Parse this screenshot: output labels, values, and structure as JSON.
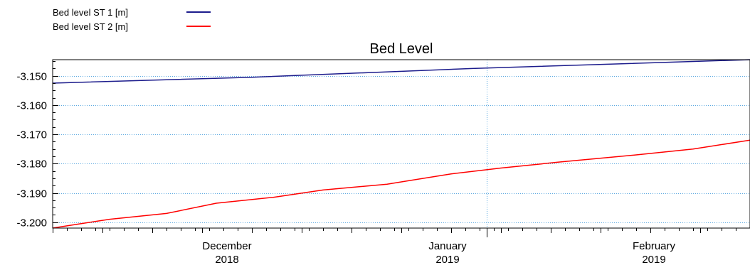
{
  "chart_data": {
    "type": "line",
    "title": "Bed Level",
    "xlabel": "",
    "ylabel": "",
    "legend_position": "top-left",
    "grid": true,
    "x_range": [
      "2018-11-22",
      "2019-02-28"
    ],
    "ylim": [
      -3.202,
      -3.1445
    ],
    "y_ticks": [
      -3.15,
      -3.16,
      -3.17,
      -3.18,
      -3.19,
      -3.2
    ],
    "y_tick_labels": [
      "-3.150",
      "-3.160",
      "-3.170",
      "-3.180",
      "-3.190",
      "-3.200"
    ],
    "x_ticks": [
      {
        "date": "2018-12-01",
        "month": "December",
        "year": "2018"
      },
      {
        "date": "2019-01-01",
        "month": "January",
        "year": "2019"
      },
      {
        "date": "2019-02-01",
        "month": "February",
        "year": "2019"
      }
    ],
    "x_grid_dates": [
      "2019-01-22"
    ],
    "series": [
      {
        "name": "Bed level ST 1 [m]",
        "color": "#1c1c8c",
        "x": [
          "2018-11-22",
          "2018-12-20",
          "2019-01-20",
          "2019-02-28"
        ],
        "y": [
          -3.1525,
          -3.1505,
          -3.1475,
          -3.1445
        ]
      },
      {
        "name": "Bed level ST 2 [m]",
        "color": "#ff0000",
        "x": [
          "2018-11-22",
          "2018-11-26",
          "2018-11-30",
          "2018-12-08",
          "2018-12-15",
          "2018-12-23",
          "2018-12-30",
          "2019-01-08",
          "2019-01-17",
          "2019-01-24",
          "2019-02-01",
          "2019-02-12",
          "2019-02-20",
          "2019-02-28"
        ],
        "y": [
          -3.202,
          -3.2005,
          -3.199,
          -3.197,
          -3.1935,
          -3.1915,
          -3.189,
          -3.187,
          -3.1835,
          -3.1815,
          -3.1795,
          -3.177,
          -3.175,
          -3.172
        ]
      }
    ]
  }
}
